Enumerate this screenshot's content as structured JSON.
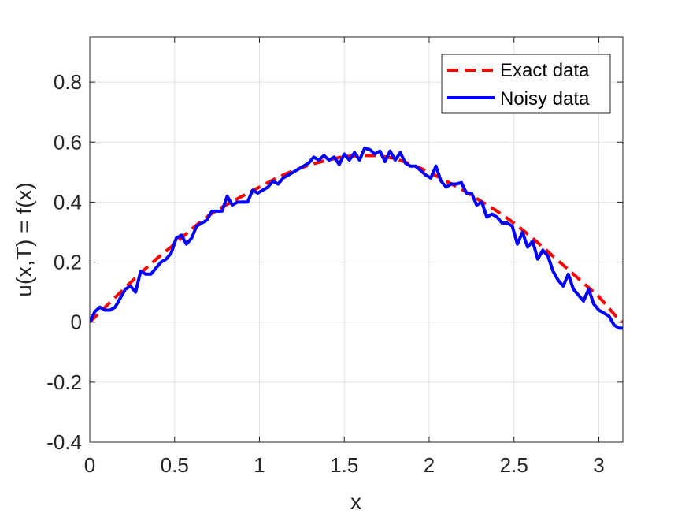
{
  "chart_data": {
    "type": "line",
    "title": "",
    "xlabel": "x",
    "ylabel": "u(x,T) = f(x)",
    "xlim": [
      0,
      3.14159
    ],
    "ylim": [
      -0.4,
      0.95
    ],
    "x_ticks": [
      0,
      0.5,
      1,
      1.5,
      2,
      2.5,
      3
    ],
    "x_tick_labels": [
      "0",
      "0.5",
      "1",
      "1.5",
      "2",
      "2.5",
      "3"
    ],
    "y_ticks": [
      -0.4,
      -0.2,
      0,
      0.2,
      0.4,
      0.6,
      0.8
    ],
    "y_tick_labels": [
      "-0.4",
      "-0.2",
      "0",
      "0.2",
      "0.4",
      "0.6",
      "0.8"
    ],
    "grid": true,
    "legend_position": "top-right",
    "series": [
      {
        "name": "Exact data",
        "color": "#ff0000",
        "style": "dashed",
        "x": [
          0,
          0.1,
          0.2,
          0.3,
          0.4,
          0.5,
          0.6,
          0.7,
          0.8,
          0.9,
          1.0,
          1.1,
          1.2,
          1.3,
          1.4,
          1.5,
          1.6,
          1.7,
          1.8,
          1.9,
          2.0,
          2.1,
          2.2,
          2.3,
          2.4,
          2.5,
          2.6,
          2.7,
          2.8,
          2.9,
          3.0,
          3.1,
          3.1416
        ],
        "y": [
          0,
          0.055,
          0.11,
          0.164,
          0.214,
          0.26,
          0.31,
          0.355,
          0.39,
          0.42,
          0.45,
          0.48,
          0.505,
          0.525,
          0.54,
          0.552,
          0.555,
          0.555,
          0.545,
          0.525,
          0.5,
          0.47,
          0.44,
          0.405,
          0.37,
          0.33,
          0.285,
          0.235,
          0.185,
          0.135,
          0.085,
          0.02,
          0
        ]
      },
      {
        "name": "Noisy data",
        "color": "#0000ff",
        "style": "solid",
        "x": [
          0,
          0.03,
          0.06,
          0.09,
          0.12,
          0.15,
          0.18,
          0.21,
          0.24,
          0.27,
          0.3,
          0.33,
          0.36,
          0.39,
          0.42,
          0.45,
          0.48,
          0.51,
          0.54,
          0.57,
          0.6,
          0.63,
          0.66,
          0.69,
          0.72,
          0.75,
          0.78,
          0.81,
          0.84,
          0.87,
          0.9,
          0.93,
          0.96,
          0.99,
          1.02,
          1.05,
          1.08,
          1.11,
          1.14,
          1.17,
          1.2,
          1.23,
          1.26,
          1.29,
          1.32,
          1.35,
          1.38,
          1.41,
          1.44,
          1.47,
          1.5,
          1.53,
          1.56,
          1.59,
          1.62,
          1.65,
          1.68,
          1.71,
          1.74,
          1.77,
          1.8,
          1.83,
          1.86,
          1.89,
          1.92,
          1.95,
          1.98,
          2.01,
          2.04,
          2.07,
          2.1,
          2.13,
          2.16,
          2.19,
          2.22,
          2.25,
          2.28,
          2.31,
          2.34,
          2.37,
          2.4,
          2.43,
          2.46,
          2.49,
          2.52,
          2.55,
          2.58,
          2.61,
          2.64,
          2.67,
          2.7,
          2.73,
          2.76,
          2.79,
          2.82,
          2.85,
          2.88,
          2.91,
          2.94,
          2.97,
          3.0,
          3.03,
          3.06,
          3.09,
          3.12,
          3.14
        ],
        "y": [
          0,
          0.035,
          0.05,
          0.04,
          0.04,
          0.05,
          0.08,
          0.11,
          0.12,
          0.1,
          0.17,
          0.16,
          0.16,
          0.18,
          0.2,
          0.21,
          0.23,
          0.28,
          0.29,
          0.26,
          0.28,
          0.32,
          0.33,
          0.34,
          0.37,
          0.37,
          0.37,
          0.42,
          0.39,
          0.4,
          0.4,
          0.4,
          0.44,
          0.43,
          0.44,
          0.45,
          0.47,
          0.46,
          0.48,
          0.49,
          0.5,
          0.51,
          0.52,
          0.53,
          0.55,
          0.54,
          0.555,
          0.54,
          0.55,
          0.525,
          0.56,
          0.54,
          0.565,
          0.54,
          0.58,
          0.575,
          0.56,
          0.57,
          0.535,
          0.57,
          0.54,
          0.565,
          0.53,
          0.52,
          0.52,
          0.505,
          0.49,
          0.48,
          0.52,
          0.47,
          0.45,
          0.46,
          0.46,
          0.465,
          0.43,
          0.43,
          0.39,
          0.4,
          0.35,
          0.36,
          0.35,
          0.33,
          0.33,
          0.32,
          0.26,
          0.3,
          0.25,
          0.27,
          0.21,
          0.24,
          0.22,
          0.17,
          0.14,
          0.12,
          0.16,
          0.11,
          0.09,
          0.07,
          0.11,
          0.06,
          0.04,
          0.03,
          0.02,
          -0.01,
          -0.02,
          -0.02
        ]
      }
    ]
  }
}
